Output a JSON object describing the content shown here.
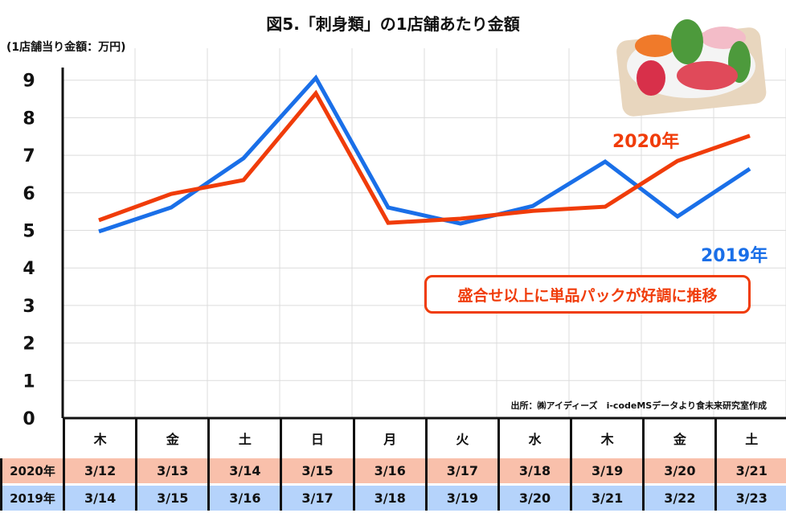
{
  "chart_data": {
    "type": "line",
    "title": "図5.「刺身類」の1店舗あたり金額",
    "ylabel": "(1店舗当り金額：万円)",
    "ylim": [
      0,
      9
    ],
    "yticks": [
      "0",
      "1",
      "2",
      "3",
      "4",
      "5",
      "6",
      "7",
      "8",
      "9"
    ],
    "categories": [
      "木",
      "金",
      "土",
      "日",
      "月",
      "火",
      "水",
      "木",
      "金",
      "土"
    ],
    "grid": true,
    "series": [
      {
        "name": "2020年",
        "color": "#f03c0a",
        "dates": [
          "3/12",
          "3/13",
          "3/14",
          "3/15",
          "3/16",
          "3/17",
          "3/18",
          "3/19",
          "3/20",
          "3/21"
        ],
        "values": [
          5.27,
          5.97,
          6.34,
          8.65,
          5.2,
          5.31,
          5.52,
          5.63,
          6.85,
          7.52
        ]
      },
      {
        "name": "2019年",
        "color": "#1a6fe8",
        "dates": [
          "3/14",
          "3/15",
          "3/16",
          "3/17",
          "3/18",
          "3/19",
          "3/20",
          "3/21",
          "3/22",
          "3/23"
        ],
        "values": [
          4.97,
          5.61,
          6.92,
          9.06,
          5.61,
          5.18,
          5.65,
          6.83,
          5.37,
          6.64
        ]
      }
    ],
    "annotation": "盛合せ以上に単品パックが好調に推移",
    "source": "出所：㈱アイディーズ　i-codeMSデータより食未来研究室作成"
  }
}
